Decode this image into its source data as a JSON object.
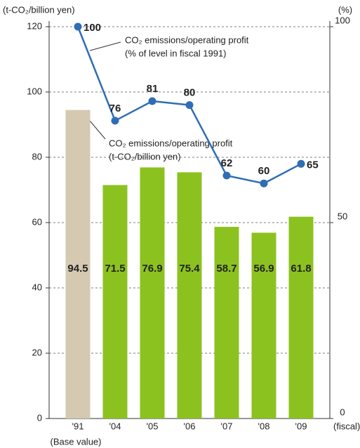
{
  "chart_data": {
    "type": "bar_line",
    "ylabel": "(t-CO₂/billion yen)",
    "y2label": "(%)",
    "xlabel": "(fiscal)",
    "categories": [
      "'91",
      "'04",
      "'05",
      "'06",
      "'07",
      "'08",
      "'09"
    ],
    "category_note": "(Base value)",
    "series": [
      {
        "type": "bar",
        "colors": [
          "#d5c9b1",
          "#8cc21f",
          "#8cc21f",
          "#8cc21f",
          "#8cc21f",
          "#8cc21f",
          "#8cc21f"
        ],
        "values": [
          94.5,
          71.5,
          76.9,
          75.4,
          58.7,
          56.9,
          61.8
        ]
      },
      {
        "type": "line",
        "axis": "y2",
        "color": "#2f6db5",
        "values": [
          100,
          76,
          81,
          80,
          62,
          60,
          65
        ]
      }
    ],
    "annotations": [
      [
        "CO₂ emissions/operating profit",
        "(% of level in fiscal 1991)"
      ],
      [
        "CO₂ emissions/operating profit",
        "(t-CO₂/billion yen)"
      ]
    ],
    "ylim": [
      0,
      120
    ],
    "yticks": [
      0,
      20,
      40,
      60,
      80,
      100,
      120
    ],
    "y2lim": [
      0,
      100
    ],
    "y2ticks": [
      0,
      50,
      100
    ],
    "grid": true
  }
}
